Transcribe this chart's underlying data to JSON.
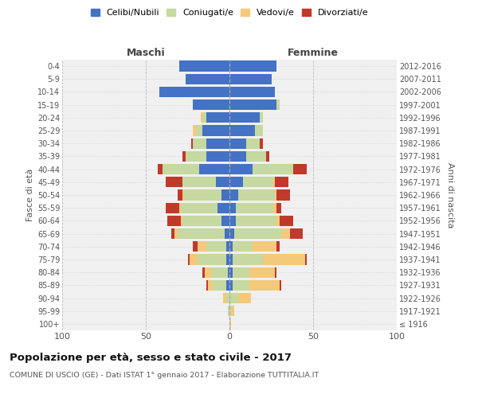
{
  "age_groups": [
    "100+",
    "95-99",
    "90-94",
    "85-89",
    "80-84",
    "75-79",
    "70-74",
    "65-69",
    "60-64",
    "55-59",
    "50-54",
    "45-49",
    "40-44",
    "35-39",
    "30-34",
    "25-29",
    "20-24",
    "15-19",
    "10-14",
    "5-9",
    "0-4"
  ],
  "birth_years": [
    "≤ 1916",
    "1917-1921",
    "1922-1926",
    "1927-1931",
    "1932-1936",
    "1937-1941",
    "1942-1946",
    "1947-1951",
    "1952-1956",
    "1957-1961",
    "1962-1966",
    "1967-1971",
    "1972-1976",
    "1977-1981",
    "1982-1986",
    "1987-1991",
    "1992-1996",
    "1997-2001",
    "2002-2006",
    "2007-2011",
    "2012-2016"
  ],
  "maschi_celibe": [
    0,
    0,
    0,
    2,
    1,
    2,
    2,
    3,
    5,
    7,
    5,
    8,
    18,
    14,
    14,
    16,
    14,
    22,
    42,
    26,
    30
  ],
  "maschi_coniugato": [
    0,
    1,
    2,
    8,
    10,
    17,
    12,
    28,
    23,
    22,
    22,
    20,
    22,
    12,
    8,
    4,
    2,
    0,
    0,
    0,
    0
  ],
  "maschi_vedovo": [
    0,
    0,
    2,
    3,
    4,
    5,
    5,
    2,
    1,
    1,
    1,
    0,
    0,
    0,
    0,
    2,
    1,
    0,
    0,
    0,
    0
  ],
  "maschi_divorziato": [
    0,
    0,
    0,
    1,
    1,
    1,
    3,
    2,
    8,
    8,
    3,
    10,
    3,
    2,
    1,
    0,
    0,
    0,
    0,
    0,
    0
  ],
  "femmine_celibe": [
    0,
    0,
    0,
    2,
    2,
    2,
    2,
    3,
    4,
    4,
    5,
    8,
    14,
    10,
    10,
    15,
    18,
    28,
    27,
    25,
    28
  ],
  "femmine_coniugata": [
    0,
    1,
    5,
    10,
    10,
    18,
    12,
    28,
    24,
    22,
    22,
    18,
    24,
    12,
    8,
    5,
    2,
    2,
    0,
    0,
    0
  ],
  "femmine_vedova": [
    1,
    2,
    8,
    18,
    15,
    25,
    14,
    5,
    2,
    2,
    1,
    1,
    0,
    0,
    0,
    0,
    0,
    0,
    0,
    0,
    0
  ],
  "femmine_divorziata": [
    0,
    0,
    0,
    1,
    1,
    1,
    2,
    8,
    8,
    3,
    8,
    8,
    8,
    2,
    2,
    0,
    0,
    0,
    0,
    0,
    0
  ],
  "color_celibe": "#4472c4",
  "color_coniugato": "#c5d9a0",
  "color_vedovo": "#f5c97a",
  "color_divorziato": "#c0392b",
  "title": "Popolazione per età, sesso e stato civile - 2017",
  "subtitle": "COMUNE DI USCIO (GE) - Dati ISTAT 1° gennaio 2017 - Elaborazione TUTTITALIA.IT",
  "xlabel_maschi": "Maschi",
  "xlabel_femmine": "Femmine",
  "ylabel_left": "Fasce di età",
  "ylabel_right": "Anni di nascita",
  "xlim": 100,
  "bg_color": "#f0f0f0",
  "grid_color": "#cccccc"
}
